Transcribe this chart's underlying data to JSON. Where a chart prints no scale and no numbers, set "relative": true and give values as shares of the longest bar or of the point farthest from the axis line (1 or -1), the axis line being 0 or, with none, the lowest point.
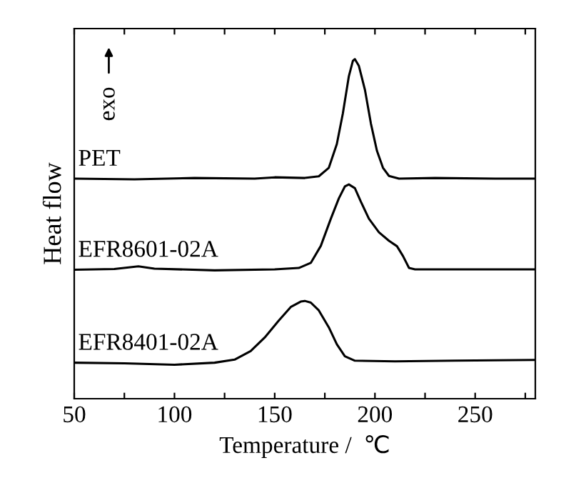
{
  "chart_data": {
    "type": "line",
    "relative": true,
    "xlabel": "Temperature /  ℃",
    "ylabel": "Heat flow",
    "annotations": [
      "exo"
    ],
    "xlim": [
      50,
      280
    ],
    "xticks": [
      50,
      {
        "value": 75,
        "label": null
      },
      100,
      {
        "value": 125,
        "label": null
      },
      150,
      {
        "value": 175,
        "label": null
      },
      200,
      {
        "value": 225,
        "label": null
      },
      250,
      {
        "value": 275,
        "label": null
      }
    ],
    "legend": false,
    "grid": false,
    "series": [
      {
        "name": "PET",
        "color": "#000000",
        "x": [
          50,
          80,
          110,
          140,
          150,
          165,
          172,
          177,
          181,
          184,
          187,
          189,
          190,
          192,
          195,
          198,
          201,
          204,
          207,
          212,
          230,
          260,
          280
        ],
        "values": [
          0.648,
          0.646,
          0.65,
          0.648,
          0.652,
          0.65,
          0.655,
          0.68,
          0.75,
          0.84,
          0.95,
          0.995,
          1.0,
          0.98,
          0.91,
          0.81,
          0.73,
          0.68,
          0.656,
          0.648,
          0.65,
          0.648,
          0.648
        ]
      },
      {
        "name": "EFR8601-02A",
        "color": "#000000",
        "x": [
          50,
          70,
          82,
          90,
          120,
          150,
          162,
          168,
          173,
          178,
          182,
          185,
          187,
          190,
          193,
          197,
          202,
          207,
          211,
          214,
          217,
          220,
          250,
          280
        ],
        "values": [
          0.38,
          0.382,
          0.39,
          0.383,
          0.378,
          0.381,
          0.385,
          0.4,
          0.45,
          0.53,
          0.59,
          0.625,
          0.631,
          0.62,
          0.58,
          0.53,
          0.49,
          0.465,
          0.449,
          0.42,
          0.385,
          0.381,
          0.381,
          0.381
        ]
      },
      {
        "name": "EFR8401-02A",
        "color": "#000000",
        "x": [
          50,
          75,
          100,
          120,
          130,
          138,
          145,
          152,
          158,
          163,
          165,
          168,
          172,
          177,
          181,
          185,
          190,
          210,
          240,
          280
        ],
        "values": [
          0.106,
          0.104,
          0.1,
          0.106,
          0.115,
          0.14,
          0.18,
          0.23,
          0.27,
          0.286,
          0.288,
          0.283,
          0.26,
          0.21,
          0.16,
          0.125,
          0.112,
          0.11,
          0.112,
          0.114
        ]
      }
    ]
  }
}
